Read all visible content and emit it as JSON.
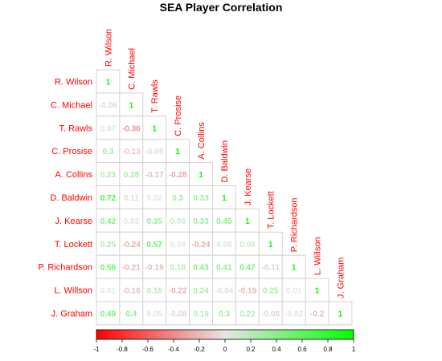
{
  "chart_data": {
    "type": "heatmap",
    "title": "SEA Player Correlation",
    "layout": "lower-triangle",
    "players": [
      "R. Wilson",
      "C. Michael",
      "T. Rawls",
      "C. Prosise",
      "A. Collins",
      "D. Baldwin",
      "J. Kearse",
      "T. Lockett",
      "P. Richardson",
      "L. Willson",
      "J. Graham"
    ],
    "matrix": [
      [
        "1"
      ],
      [
        "-0.06",
        "1"
      ],
      [
        "0.07",
        "-0.36",
        "1"
      ],
      [
        "0.3",
        "-0.13",
        "-0.05",
        "1"
      ],
      [
        "0.23",
        "0.28",
        "-0.17",
        "-0.28",
        "1"
      ],
      [
        "0.72",
        "0.11",
        "0.02",
        "0.3",
        "0.33",
        "1"
      ],
      [
        "0.42",
        "0.03",
        "0.35",
        "0.09",
        "0.33",
        "0.45",
        "1"
      ],
      [
        "0.25",
        "-0.24",
        "0.57",
        "0.04",
        "-0.24",
        "0.06",
        "0.08",
        "1"
      ],
      [
        "0.56",
        "-0.21",
        "-0.19",
        "0.18",
        "0.43",
        "0.41",
        "0.47",
        "-0.11",
        "1"
      ],
      [
        "0.01",
        "-0.16",
        "0.18",
        "-0.22",
        "0.24",
        "-0.04",
        "-0.19",
        "0.25",
        "0.01",
        "1"
      ],
      [
        "0.49",
        "0.4",
        "0.05",
        "-0.08",
        "0.19",
        "0.3",
        "0.22",
        "-0.08",
        "-0.02",
        "-0.2",
        "1"
      ]
    ],
    "colorbar": {
      "range": [
        -1,
        1
      ],
      "ticks": [
        "-1",
        "-0.8",
        "-0.6",
        "-0.4",
        "-0.2",
        "0",
        "0.2",
        "0.4",
        "0.6",
        "0.8",
        "1"
      ],
      "low_color": "#ff0000",
      "mid_color": "#e5e5e5",
      "high_color": "#00ff00"
    },
    "label_color": "#ff0000"
  }
}
